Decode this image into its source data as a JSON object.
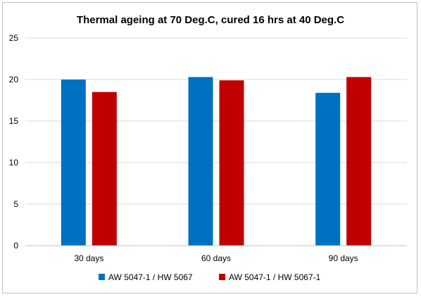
{
  "chart_data": {
    "type": "bar",
    "title": "Thermal ageing at 70 Deg.C, cured 16 hrs at 40 Deg.C",
    "xlabel": "",
    "ylabel": "",
    "categories": [
      "30 days",
      "60 days",
      "90 days"
    ],
    "series": [
      {
        "name": "AW 5047-1 / HW 5067",
        "color": "#0070c0",
        "values": [
          20.0,
          20.3,
          18.4
        ]
      },
      {
        "name": "AW 5047-1 / HW 5067-1",
        "color": "#c00000",
        "values": [
          18.5,
          19.9,
          20.3
        ]
      }
    ],
    "ylim": [
      0,
      25
    ],
    "yticks": [
      "0",
      "5",
      "10",
      "15",
      "20",
      "25"
    ],
    "grid": true,
    "legend_position": "bottom"
  }
}
